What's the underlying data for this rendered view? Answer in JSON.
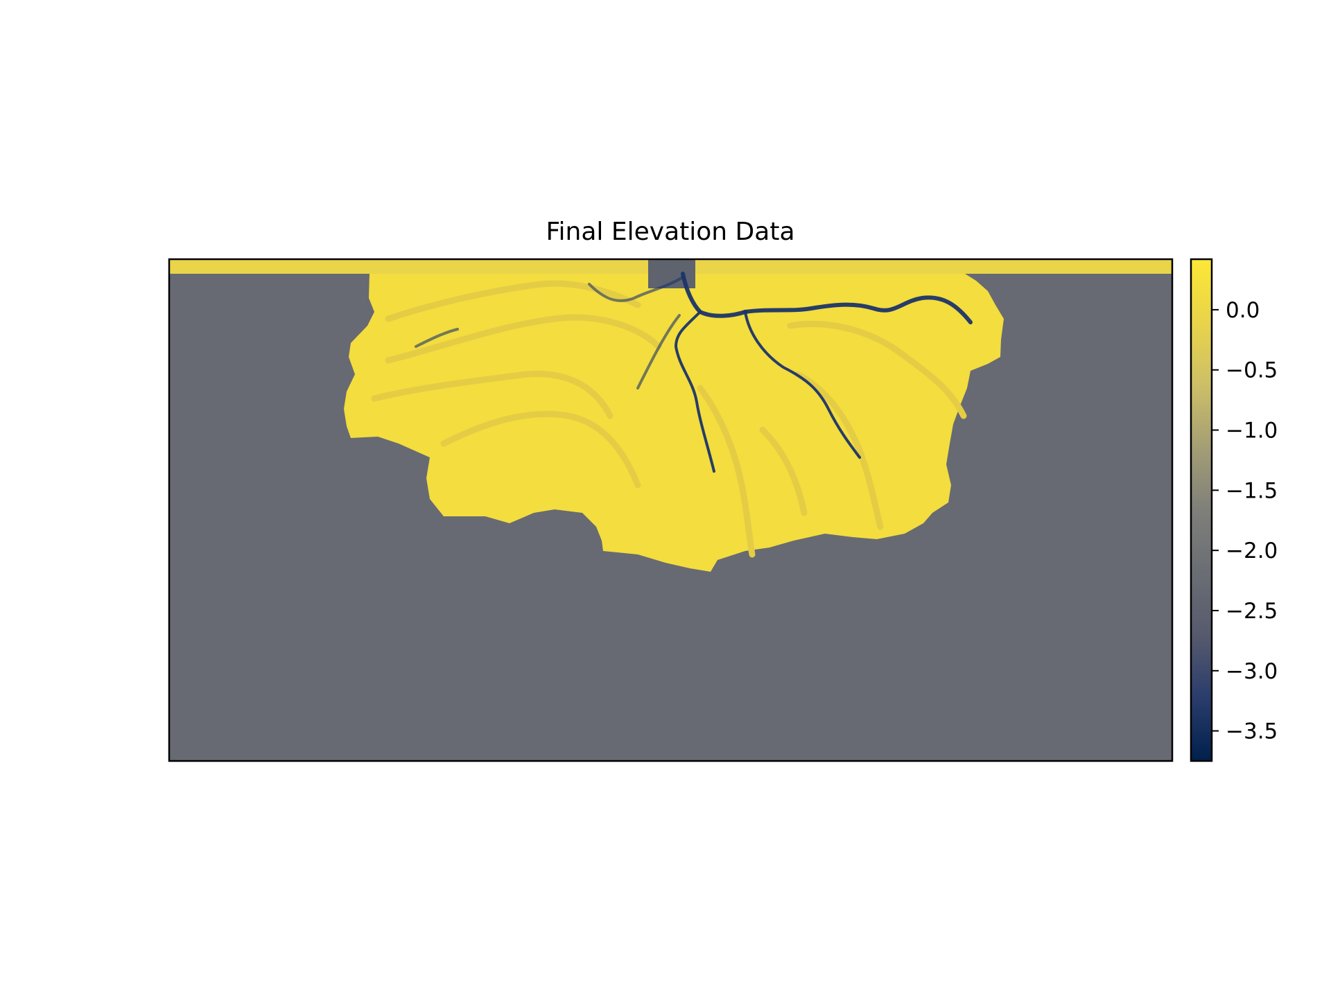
{
  "chart_data": {
    "type": "heatmap",
    "title": "Final Elevation Data",
    "xlabel": "",
    "ylabel": "",
    "axes_ticks_visible": false,
    "grid": false,
    "colormap": "cividis",
    "colorbar": {
      "placement": "right",
      "vmin": -3.75,
      "vmax": 0.42,
      "ticks": [
        0.0,
        -0.5,
        -1.0,
        -1.5,
        -2.0,
        -2.5,
        -3.0,
        -3.5
      ],
      "tick_labels": [
        "0.0",
        "−0.5",
        "−1.0",
        "−1.5",
        "−2.0",
        "−2.5",
        "−3.0",
        "−3.5"
      ],
      "stops": [
        "#00204c",
        "#2a3c6c",
        "#565a6d",
        "#6a6e74",
        "#7f7f7a",
        "#a49e75",
        "#cdbf67",
        "#e9d44a",
        "#fde737"
      ]
    },
    "values": {
      "basin_elevation": -2.0,
      "inlet_land_elevation": 0.1,
      "deposit_elevation": 0.25,
      "channel_depth_min": -3.6
    },
    "colors": {
      "basin": "#676a72",
      "land_strip": "#e9d44a",
      "deposit": "#f3dd3f",
      "deposit_shade": "#e4cc45",
      "channel": "#1b3468",
      "inlet": "#5e636e"
    }
  }
}
